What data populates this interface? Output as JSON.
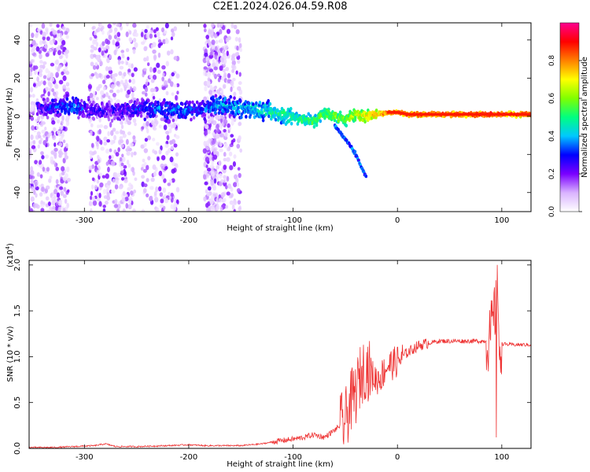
{
  "title": "C2E1.2024.026.04.59.R08",
  "chart_data": [
    {
      "type": "heatmap",
      "xlabel": "Height of straight line (km)",
      "ylabel": "Frequency (Hz)",
      "xlim": [
        -353,
        128
      ],
      "ylim": [
        -50,
        49
      ],
      "xticks": [
        -300,
        -200,
        -100,
        0,
        100
      ],
      "xtick_labels": [
        "-300",
        "-200",
        "-100",
        "0",
        "100"
      ],
      "yticks": [
        -40,
        -20,
        0,
        20,
        40
      ],
      "ytick_labels": [
        "-40",
        "-20",
        "0",
        "20",
        "40"
      ],
      "colorbar": {
        "label": "Normalized spectral amplitude",
        "range": [
          0,
          1
        ],
        "ticks": [
          0.0,
          0.2,
          0.4,
          0.6,
          0.8
        ],
        "tick_labels": [
          "0.0",
          "0.2",
          "0.4",
          "0.6",
          "0.8"
        ],
        "colormap": [
          "#ffffff",
          "#d9b3ff",
          "#7a00ff",
          "#0000ff",
          "#00c8ff",
          "#00ff80",
          "#80ff00",
          "#ffff00",
          "#ff8000",
          "#ff0000",
          "#ff0090"
        ]
      },
      "ridge": {
        "x": [
          -345,
          -330,
          -310,
          -290,
          -270,
          -250,
          -230,
          -210,
          -190,
          -170,
          -150,
          -130,
          -110,
          -95,
          -80,
          -70,
          -60,
          -50,
          -40,
          -30,
          -20,
          -10,
          0,
          10,
          30,
          60,
          90,
          100,
          128
        ],
        "frequency": [
          5,
          5,
          5,
          3,
          3,
          4,
          4,
          3,
          3,
          6,
          4,
          3,
          1,
          -1,
          -3,
          2,
          0,
          -2,
          1,
          0,
          1,
          2,
          2,
          1,
          1,
          1,
          1,
          1,
          1
        ],
        "amplitude": [
          0.25,
          0.3,
          0.35,
          0.25,
          0.25,
          0.3,
          0.35,
          0.35,
          0.3,
          0.4,
          0.4,
          0.45,
          0.5,
          0.5,
          0.55,
          0.55,
          0.6,
          0.6,
          0.65,
          0.7,
          0.75,
          0.85,
          0.85,
          0.85,
          0.85,
          0.85,
          0.9,
          0.85,
          0.85
        ]
      },
      "branch": {
        "x": [
          -60,
          -50,
          -40,
          -35,
          -30
        ],
        "frequency": [
          -5,
          -12,
          -20,
          -26,
          -32
        ]
      },
      "noise_columns": [
        {
          "x_range": [
            -353,
            -315
          ],
          "density": "high"
        },
        {
          "x_range": [
            -295,
            -250
          ],
          "density": "high"
        },
        {
          "x_range": [
            -245,
            -210
          ],
          "density": "medium"
        },
        {
          "x_range": [
            -185,
            -165
          ],
          "density": "high"
        },
        {
          "x_range": [
            -165,
            -150
          ],
          "density": "low"
        }
      ]
    },
    {
      "type": "line",
      "xlabel": "Height of straight line (km)",
      "ylabel": "SNR (10 * v/v)",
      "y_multiplier_label": "(x10",
      "y_multiplier_exp": "4",
      "xlim": [
        -353,
        128
      ],
      "ylim": [
        0,
        2.05
      ],
      "xticks": [
        -300,
        -200,
        -100,
        0,
        100
      ],
      "xtick_labels": [
        "-300",
        "-200",
        "-100",
        "0",
        "100"
      ],
      "yticks": [
        0.0,
        0.5,
        1.0,
        1.5,
        2.0
      ],
      "ytick_labels": [
        "0.0",
        "0.5",
        "1.0",
        "1.5",
        "2.0"
      ],
      "color": "#ee3333",
      "series": [
        {
          "x": [
            -353,
            -330,
            -310,
            -290,
            -280,
            -270,
            -250,
            -220,
            -200,
            -185,
            -170,
            -150,
            -130,
            -115,
            -100,
            -90,
            -80,
            -70,
            -60,
            -50,
            -45,
            -40,
            -35,
            -30,
            -25,
            -20,
            -15,
            -10,
            -5,
            0,
            5,
            10,
            20,
            30,
            40,
            60,
            80,
            88,
            92,
            95,
            97,
            100,
            110,
            128
          ],
          "y": [
            0.01,
            0.01,
            0.02,
            0.03,
            0.05,
            0.02,
            0.02,
            0.03,
            0.04,
            0.03,
            0.03,
            0.03,
            0.05,
            0.08,
            0.1,
            0.12,
            0.15,
            0.12,
            0.2,
            0.3,
            0.5,
            0.6,
            0.8,
            0.9,
            0.8,
            0.75,
            0.8,
            0.9,
            0.92,
            0.95,
            1.0,
            1.05,
            1.12,
            1.15,
            1.17,
            1.17,
            1.17,
            1.17,
            1.4,
            1.6,
            1.15,
            1.14,
            1.13,
            1.13
          ]
        }
      ]
    }
  ]
}
